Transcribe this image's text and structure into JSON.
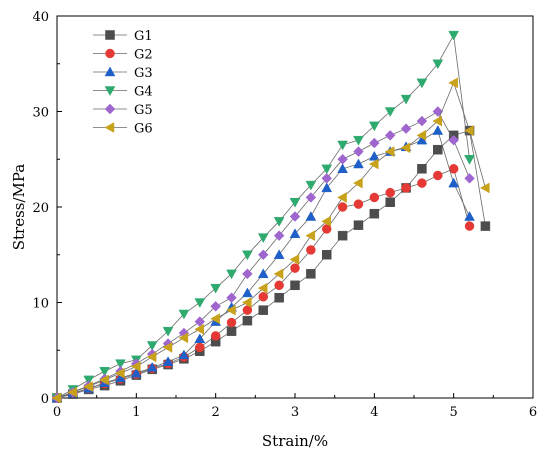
{
  "chart_data": {
    "type": "scatter",
    "xlabel": "Strain/%",
    "ylabel": "Stress/MPa",
    "xlim": [
      0,
      6
    ],
    "ylim": [
      0,
      40
    ],
    "xticks": [
      "0",
      "1",
      "2",
      "3",
      "4",
      "5",
      "6"
    ],
    "yticks": [
      "0",
      "10",
      "20",
      "30",
      "40"
    ],
    "grid": false,
    "legend_position": "top-left",
    "series": [
      {
        "name": "G1",
        "color": "#4d4d4d",
        "marker": "square",
        "x": [
          0,
          0.2,
          0.4,
          0.6,
          0.8,
          1.0,
          1.2,
          1.4,
          1.6,
          1.8,
          2.0,
          2.2,
          2.4,
          2.6,
          2.8,
          3.0,
          3.2,
          3.4,
          3.6,
          3.8,
          4.0,
          4.2,
          4.4,
          4.6,
          4.8,
          5.0,
          5.2,
          5.4
        ],
        "y": [
          0,
          0.4,
          0.9,
          1.3,
          1.8,
          2.4,
          3.0,
          3.5,
          4.1,
          4.9,
          5.9,
          7.0,
          8.1,
          9.2,
          10.5,
          11.8,
          13.0,
          15.0,
          17.0,
          18.1,
          19.3,
          20.5,
          22.0,
          24.0,
          26.0,
          27.5,
          28.0,
          18.0
        ]
      },
      {
        "name": "G2",
        "color": "#e53935",
        "marker": "circle",
        "x": [
          0,
          0.2,
          0.4,
          0.6,
          0.8,
          1.0,
          1.2,
          1.4,
          1.6,
          1.8,
          2.0,
          2.2,
          2.4,
          2.6,
          2.8,
          3.0,
          3.2,
          3.4,
          3.6,
          3.8,
          4.0,
          4.2,
          4.4,
          4.6,
          4.8,
          5.0,
          5.2
        ],
        "y": [
          0,
          0.5,
          1.0,
          1.5,
          2.0,
          2.5,
          3.1,
          3.6,
          4.3,
          5.3,
          6.5,
          7.9,
          9.2,
          10.6,
          11.8,
          13.6,
          15.5,
          17.7,
          20.0,
          20.3,
          21.0,
          21.5,
          22.0,
          22.5,
          23.3,
          24.0,
          18.0
        ]
      },
      {
        "name": "G3",
        "color": "#1f5fc8",
        "marker": "triangle-up",
        "x": [
          0,
          0.2,
          0.4,
          0.6,
          0.8,
          1.0,
          1.2,
          1.4,
          1.6,
          1.8,
          2.0,
          2.2,
          2.4,
          2.6,
          2.8,
          3.0,
          3.2,
          3.4,
          3.6,
          3.8,
          4.0,
          4.2,
          4.4,
          4.6,
          4.8,
          5.0,
          5.2
        ],
        "y": [
          0,
          0.5,
          1.0,
          1.6,
          2.1,
          2.6,
          3.2,
          3.8,
          4.5,
          6.2,
          8.0,
          9.5,
          11.0,
          13.0,
          15.0,
          17.2,
          19.0,
          22.0,
          24.0,
          24.5,
          25.3,
          25.8,
          26.3,
          27.0,
          28.0,
          22.5,
          19.0
        ]
      },
      {
        "name": "G4",
        "color": "#2eaa6e",
        "marker": "triangle-down",
        "x": [
          0,
          0.2,
          0.4,
          0.6,
          0.8,
          1.0,
          1.2,
          1.4,
          1.6,
          1.8,
          2.0,
          2.2,
          2.4,
          2.6,
          2.8,
          3.0,
          3.2,
          3.4,
          3.6,
          3.8,
          4.0,
          4.2,
          4.4,
          4.6,
          4.8,
          5.0,
          5.2
        ],
        "y": [
          0,
          0.9,
          1.9,
          2.8,
          3.6,
          4.0,
          5.5,
          7.0,
          8.8,
          10.0,
          11.5,
          13.0,
          15.0,
          16.8,
          18.5,
          20.5,
          22.3,
          24.0,
          26.5,
          27.0,
          28.5,
          30.0,
          31.3,
          33.0,
          35.0,
          38.0,
          25.0
        ]
      },
      {
        "name": "G5",
        "color": "#a066d0",
        "marker": "diamond",
        "x": [
          0,
          0.2,
          0.4,
          0.6,
          0.8,
          1.0,
          1.2,
          1.4,
          1.6,
          1.8,
          2.0,
          2.2,
          2.4,
          2.6,
          2.8,
          3.0,
          3.2,
          3.4,
          3.6,
          3.8,
          4.0,
          4.2,
          4.4,
          4.6,
          4.8,
          5.0,
          5.2
        ],
        "y": [
          0,
          0.6,
          1.3,
          2.0,
          2.8,
          3.6,
          4.6,
          5.7,
          6.8,
          8.0,
          9.6,
          10.5,
          13.0,
          15.0,
          17.0,
          19.0,
          21.0,
          23.0,
          25.0,
          25.8,
          26.7,
          27.5,
          28.2,
          29.0,
          30.0,
          27.0,
          23.0
        ]
      },
      {
        "name": "G6",
        "color": "#c9a21b",
        "marker": "triangle-left",
        "x": [
          0,
          0.2,
          0.4,
          0.6,
          0.8,
          1.0,
          1.2,
          1.4,
          1.6,
          1.8,
          2.0,
          2.2,
          2.4,
          2.6,
          2.8,
          3.0,
          3.2,
          3.4,
          3.6,
          3.8,
          4.0,
          4.2,
          4.4,
          4.6,
          4.8,
          5.0,
          5.2,
          5.4
        ],
        "y": [
          0,
          0.6,
          1.2,
          1.9,
          2.6,
          3.3,
          4.3,
          5.3,
          6.3,
          7.2,
          8.3,
          9.2,
          10.0,
          11.5,
          13.0,
          14.5,
          17.0,
          18.5,
          21.0,
          22.5,
          24.5,
          25.8,
          26.2,
          27.5,
          29.0,
          33.0,
          28.0,
          22.0
        ]
      }
    ]
  }
}
